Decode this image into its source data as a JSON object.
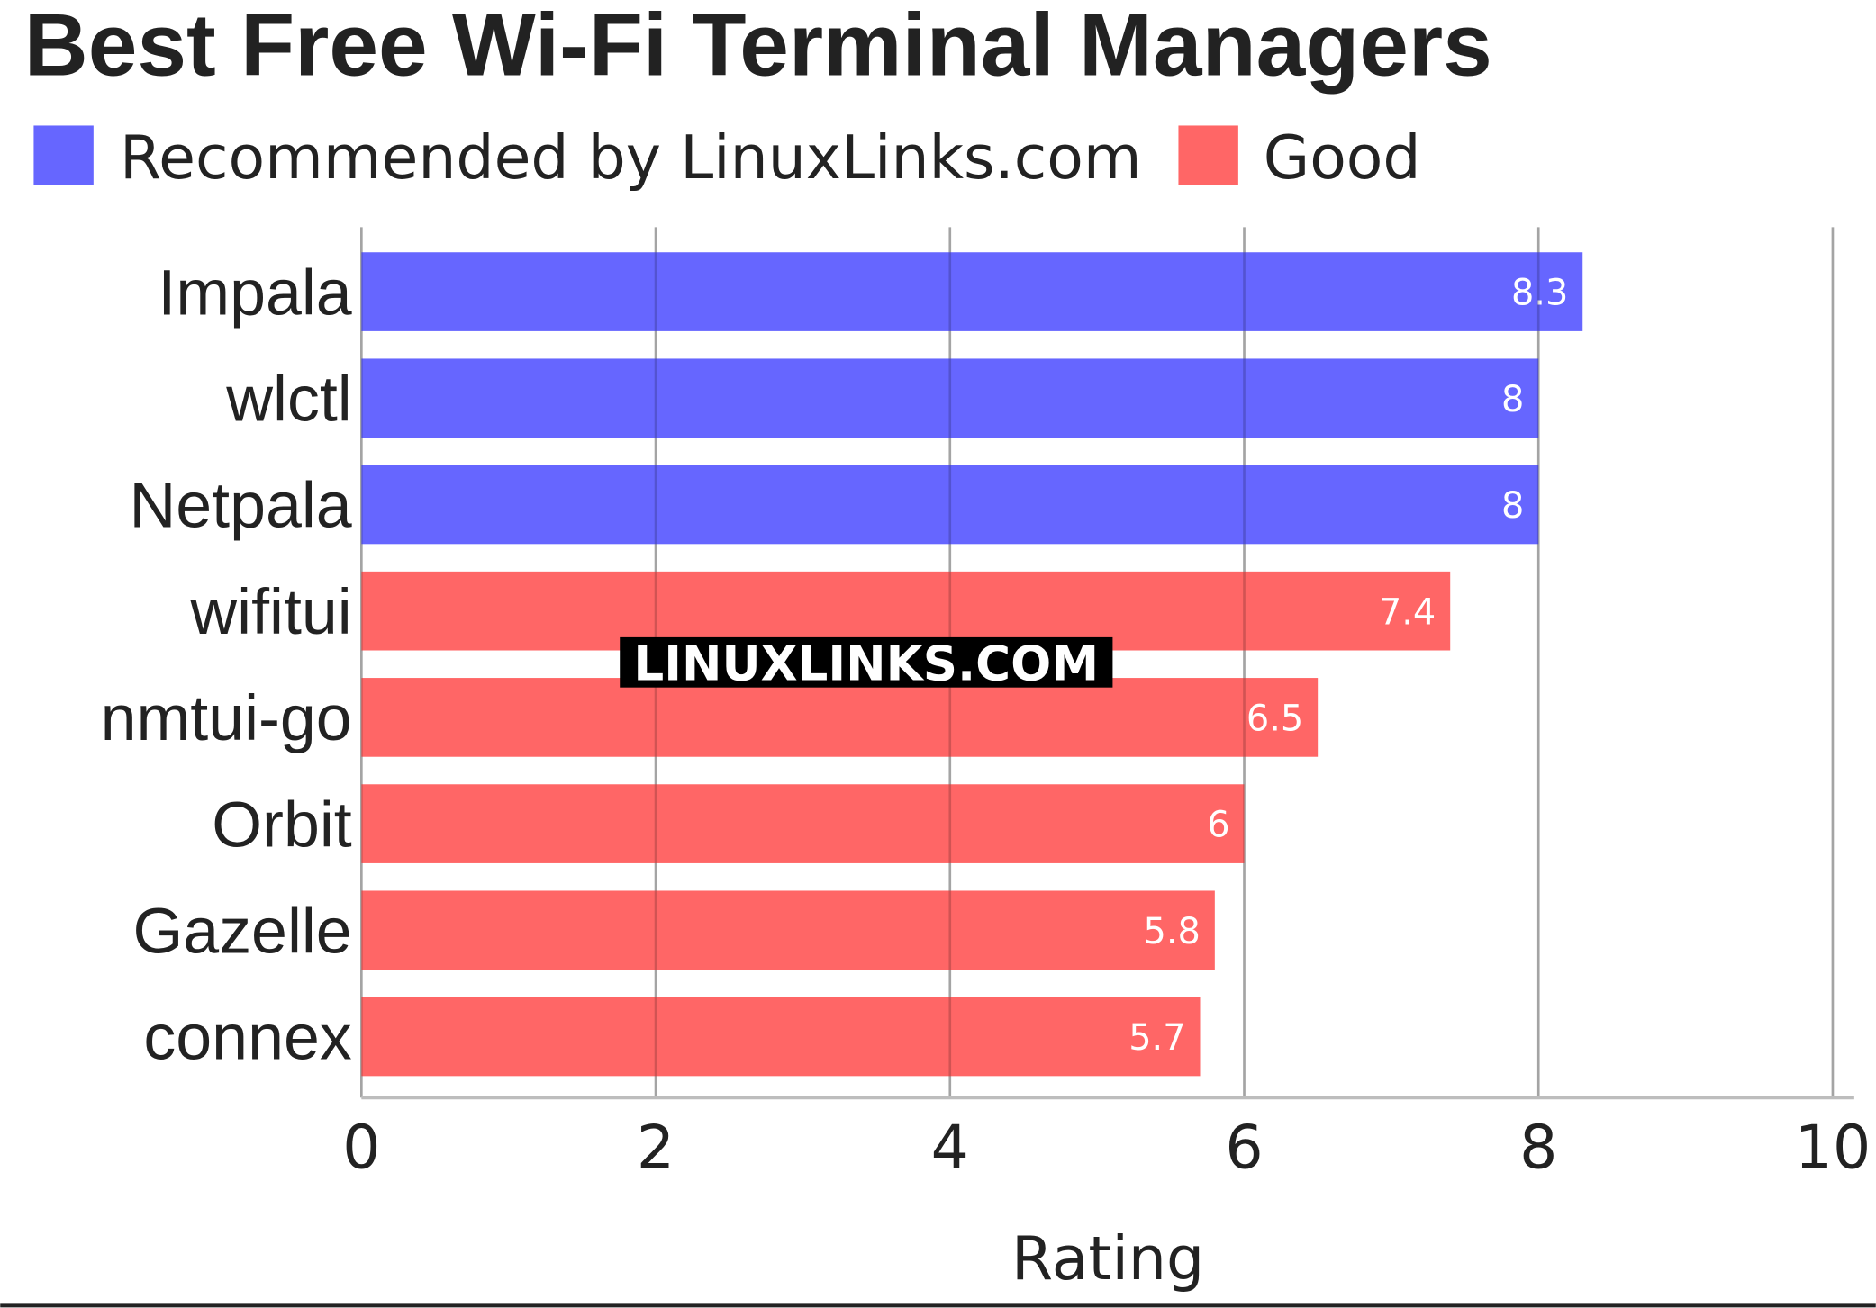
{
  "chart_data": {
    "type": "bar",
    "orientation": "horizontal",
    "title": "Best Free Wi-Fi Terminal Managers",
    "xlabel": "Rating",
    "ylabel": "",
    "xlim": [
      0,
      10
    ],
    "xticks": [
      "0",
      "2",
      "4",
      "6",
      "8",
      "10"
    ],
    "grid": true,
    "legend_position": "top-left",
    "legend": [
      {
        "name": "Recommended by LinuxLinks.com",
        "color": "#6666ff"
      },
      {
        "name": "Good",
        "color": "#ff6666"
      }
    ],
    "categories": [
      "Impala",
      "wlctl",
      "Netpala",
      "wifitui",
      "nmtui-go",
      "Orbit",
      "Gazelle",
      "connex"
    ],
    "values": [
      8.3,
      8,
      8,
      7.4,
      6.5,
      6,
      5.8,
      5.7
    ],
    "labels": [
      "8.3",
      "8",
      "8",
      "7.4",
      "6.5",
      "6",
      "5.8",
      "5.7"
    ],
    "groups": [
      0,
      0,
      0,
      1,
      1,
      1,
      1,
      1
    ]
  },
  "watermark": "LINUXLINKS.COM"
}
